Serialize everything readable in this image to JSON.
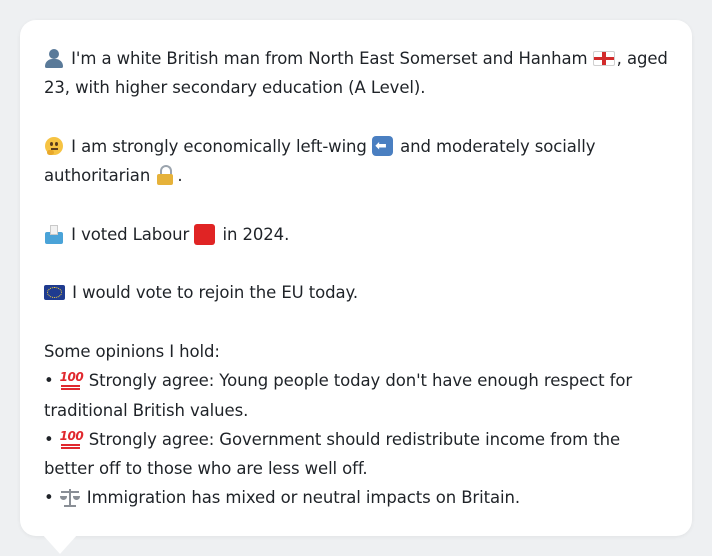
{
  "profile": {
    "identity": {
      "pre": "I'm a white British man from North East Somerset and Hanham",
      "post": ", aged 23, with higher secondary education (A Level)."
    },
    "politics": {
      "pre": "I am strongly economically left-wing",
      "mid": "and moderately socially authoritarian",
      "post": "."
    },
    "vote": {
      "pre": "I voted Labour",
      "post": "in 2024."
    },
    "eu": {
      "text": "I would vote to rejoin the EU today."
    },
    "opinions_heading": "Some opinions I hold:",
    "opinions": [
      {
        "bullet": "•",
        "text": "Strongly agree: Young people today don't have enough respect for traditional British values."
      },
      {
        "bullet": "•",
        "text": "Strongly agree: Government should redistribute income from the better off to those who are less well off."
      },
      {
        "bullet": "•",
        "text": "Immigration has mixed or neutral impacts on Britain."
      }
    ]
  },
  "icons": [
    "person-icon",
    "england-flag-icon",
    "thinking-face-icon",
    "left-arrow-icon",
    "lock-icon",
    "ballot-box-icon",
    "red-square-icon",
    "eu-flag-icon",
    "hundred-points-icon",
    "balance-scale-icon"
  ],
  "colors": {
    "card_bg": "#ffffff",
    "page_bg": "#eef0f2",
    "text": "#1f2328"
  }
}
